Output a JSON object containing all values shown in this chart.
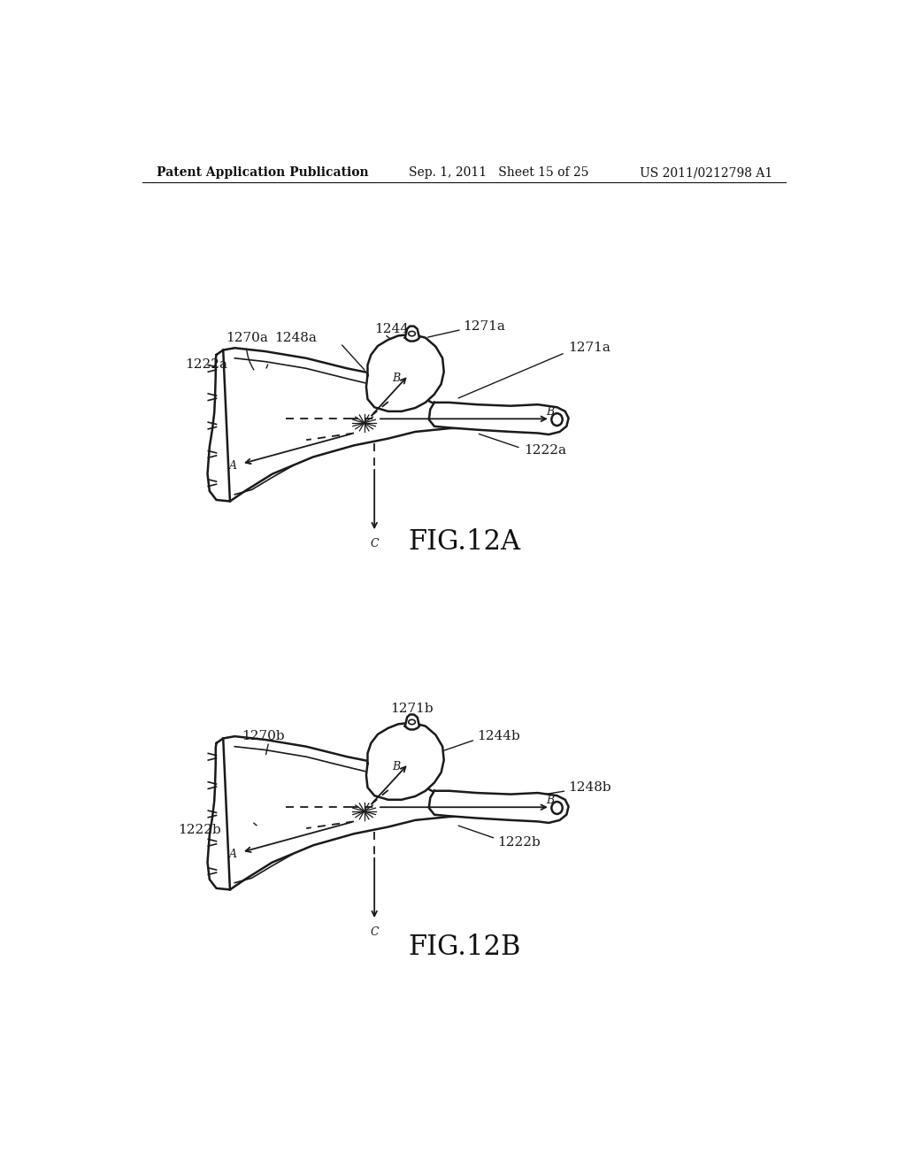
{
  "background_color": "#ffffff",
  "header_left": "Patent Application Publication",
  "header_center": "Sep. 1, 2011   Sheet 15 of 25",
  "header_right": "US 2011/0212798 A1",
  "fig_label_a": "FIG.12A",
  "fig_label_b": "FIG.12B",
  "header_fontsize": 10,
  "fig_label_fontsize": 22,
  "label_fontsize": 11
}
